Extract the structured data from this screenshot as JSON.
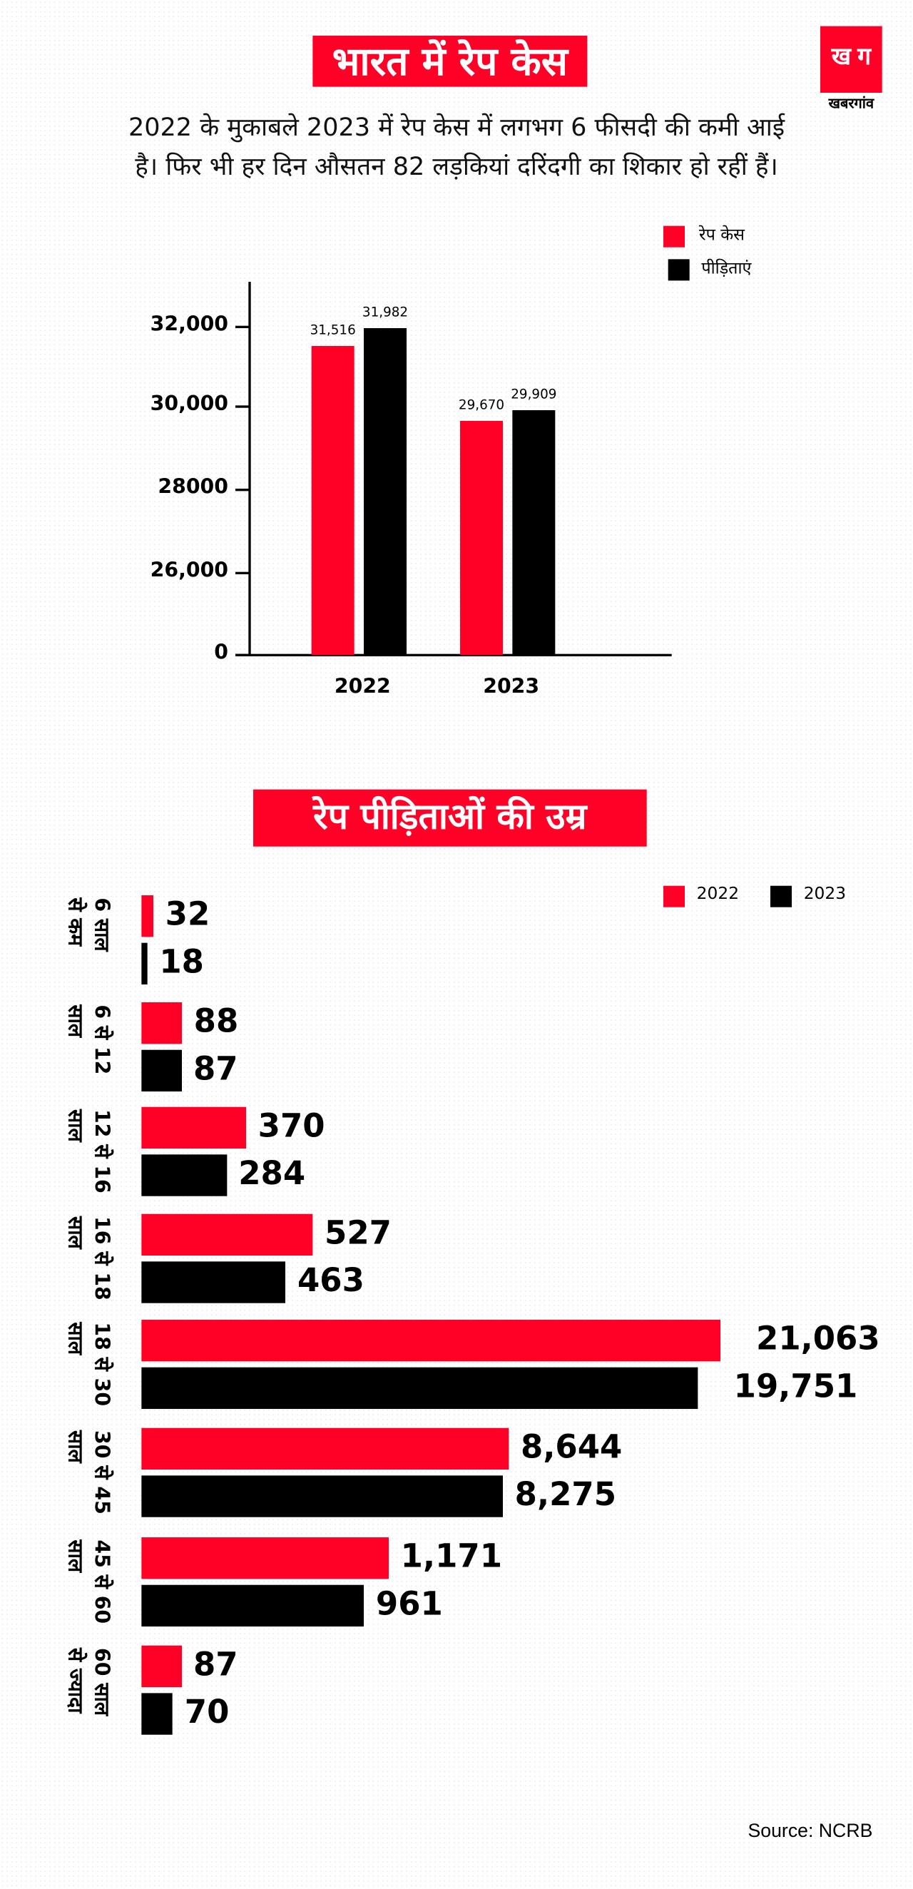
{
  "header": {
    "title": "भारत में रेप केस",
    "logo_mark": "ख ग",
    "logo_name": "खबरगांव",
    "subtitle_line1": "2022 के मुकाबले 2023 में रेप केस में लगभग 6 फीसदी की कमी आई",
    "subtitle_line2": "है। फिर भी हर दिन औसतन 82 लड़कियां दरिंदगी का शिकार हो रहीं हैं।"
  },
  "colors": {
    "red": "#ff0026",
    "black": "#000000"
  },
  "chart_data": [
    {
      "type": "bar",
      "title": "भारत में रेप केस",
      "categories": [
        "2022",
        "2023"
      ],
      "series": [
        {
          "name": "रेप केस",
          "color": "#ff0026",
          "values": [
            31516,
            29670
          ],
          "labels": [
            "31,516",
            "29,670"
          ]
        },
        {
          "name": "पीड़िताएं",
          "color": "#000000",
          "values": [
            31982,
            29909
          ],
          "labels": [
            "31,982",
            "29,909"
          ]
        }
      ],
      "yticks": [
        {
          "value": 32000,
          "label": "32,000"
        },
        {
          "value": 30000,
          "label": "30,000"
        },
        {
          "value": 28000,
          "label": "28000"
        },
        {
          "value": 26000,
          "label": "26,000"
        },
        {
          "value": 0,
          "label": "0"
        }
      ],
      "axis_break": true,
      "legend": "top-right",
      "grid": false
    },
    {
      "type": "bar",
      "orientation": "horizontal",
      "title": "रेप पीड़िताओं की उम्र",
      "categories": [
        [
          "6 साल",
          "से कम"
        ],
        [
          "6 से 12",
          "साल"
        ],
        [
          "12 से 16",
          "साल"
        ],
        [
          "16 से 18",
          "साल"
        ],
        [
          "18 से 30",
          "साल"
        ],
        [
          "30 से 45",
          "साल"
        ],
        [
          "45 से 60",
          "साल"
        ],
        [
          "60 साल",
          "से ज्यादा"
        ]
      ],
      "series": [
        {
          "name": "2022",
          "color": "#ff0026",
          "values": [
            32,
            88,
            370,
            527,
            21063,
            8644,
            1171,
            87
          ],
          "labels": [
            "32",
            "88",
            "370",
            "527",
            "21,063",
            "8,644",
            "1,171",
            "87"
          ]
        },
        {
          "name": "2023",
          "color": "#000000",
          "values": [
            18,
            87,
            284,
            463,
            19751,
            8275,
            961,
            70
          ],
          "labels": [
            "18",
            "87",
            "284",
            "463",
            "19,751",
            "8,275",
            "961",
            "70"
          ]
        }
      ],
      "legend": "top-right",
      "grid": false
    }
  ],
  "source": "Source: NCRB"
}
